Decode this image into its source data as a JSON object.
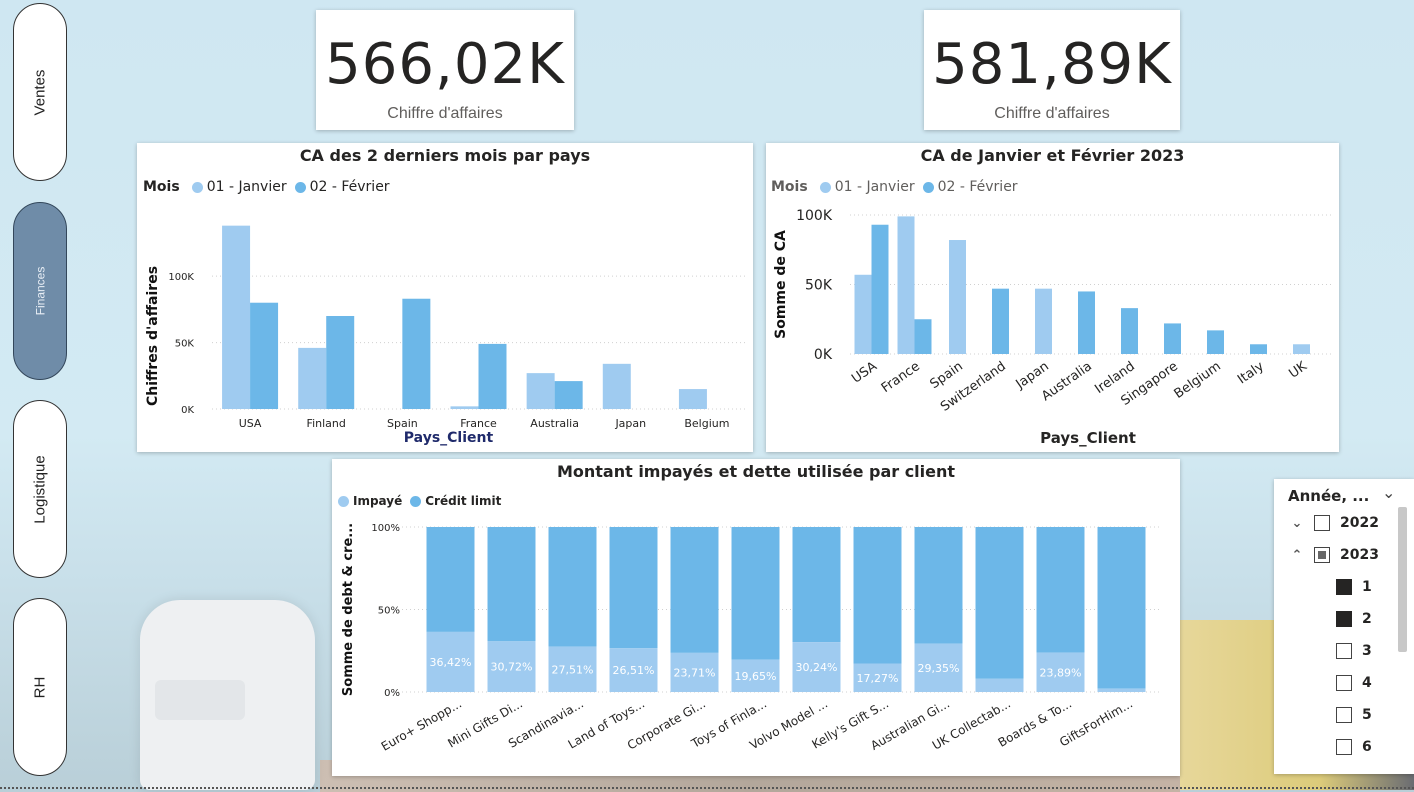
{
  "nav": {
    "items": [
      "Ventes",
      "Finances",
      "Logistique",
      "RH"
    ],
    "active": "Finances"
  },
  "kpis": [
    {
      "value": "566,02K",
      "label": "Chiffre d'affaires"
    },
    {
      "value": "581,89K",
      "label": "Chiffre d'affaires"
    }
  ],
  "slicer": {
    "title": "Année, ...",
    "years": [
      "2022",
      "2023"
    ],
    "months": [
      {
        "label": "1",
        "checked": true
      },
      {
        "label": "2",
        "checked": true
      },
      {
        "label": "3",
        "checked": false
      },
      {
        "label": "4",
        "checked": false
      },
      {
        "label": "5",
        "checked": false
      },
      {
        "label": "6",
        "checked": false
      }
    ]
  },
  "colors": {
    "janvier": "#9fcbf0",
    "fevrier": "#6cb7e8",
    "impaye": "#9fcbf0",
    "credit": "#6cb7e8"
  },
  "chart_data": [
    {
      "type": "bar",
      "title": "CA des 2 derniers mois par pays",
      "legend_title": "Mois",
      "xlabel": "Pays_Client",
      "ylabel": "Chiffres d'affaires",
      "categories": [
        "USA",
        "Finland",
        "Spain",
        "France",
        "Australia",
        "Japan",
        "Belgium"
      ],
      "series": [
        {
          "name": "01 - Janvier",
          "values": [
            138000,
            46000,
            0,
            2000,
            27000,
            34000,
            15000
          ]
        },
        {
          "name": "02 - Février",
          "values": [
            80000,
            70000,
            83000,
            49000,
            21000,
            0,
            0
          ]
        }
      ],
      "yticks": [
        "0K",
        "50K",
        "100K"
      ],
      "ylim": [
        0,
        140000
      ],
      "legend_position": "top-left"
    },
    {
      "type": "bar",
      "title": "CA de Janvier et Février 2023",
      "legend_title": "Mois",
      "xlabel": "Pays_Client",
      "ylabel": "Somme de CA",
      "categories": [
        "USA",
        "France",
        "Spain",
        "Switzerland",
        "Japan",
        "Australia",
        "Ireland",
        "Singapore",
        "Belgium",
        "Italy",
        "UK"
      ],
      "series": [
        {
          "name": "01 - Janvier",
          "values": [
            57000,
            99000,
            82000,
            0,
            47000,
            0,
            0,
            0,
            0,
            0,
            7000
          ]
        },
        {
          "name": "02 - Février",
          "values": [
            93000,
            25000,
            0,
            47000,
            0,
            45000,
            33000,
            22000,
            17000,
            7000,
            0
          ]
        }
      ],
      "yticks": [
        "0K",
        "50K",
        "100K"
      ],
      "ylim": [
        0,
        100000
      ],
      "legend_position": "top-left"
    },
    {
      "type": "bar",
      "stacked": "100%",
      "title": "Montant impayés et dette utilisée par client",
      "ylabel": "Somme de debt & cre...",
      "categories": [
        "Euro+ Shopp...",
        "Mini Gifts Di...",
        "Scandinavia...",
        "Land of Toys...",
        "Corporate Gi...",
        "Toys of Finla...",
        "Volvo Model ...",
        "Kelly's Gift S...",
        "Australian Gi...",
        "UK Collectab...",
        "Boards & To...",
        "GiftsForHim..."
      ],
      "series": [
        {
          "name": "Impayé",
          "values": [
            36.42,
            30.72,
            27.51,
            26.51,
            23.71,
            19.65,
            30.24,
            17.27,
            29.35,
            8,
            23.89,
            2
          ]
        },
        {
          "name": "Crédit limit",
          "values": [
            63.58,
            69.28,
            72.49,
            73.49,
            76.29,
            80.35,
            69.76,
            82.73,
            70.65,
            92,
            76.11,
            98
          ]
        }
      ],
      "data_labels": [
        "36,42%",
        "30,72%",
        "27,51%",
        "26,51%",
        "23,71%",
        "19,65%",
        "30,24%",
        "17,27%",
        "29,35%",
        "",
        "23,89%",
        ""
      ],
      "yticks": [
        "0%",
        "50%",
        "100%"
      ],
      "ylim": [
        0,
        100
      ],
      "legend_position": "top-left"
    }
  ]
}
